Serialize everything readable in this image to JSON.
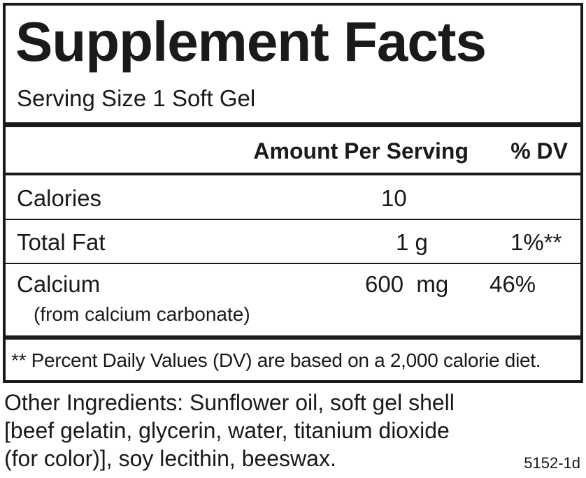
{
  "title": "Supplement Facts",
  "serving_size": "Serving Size 1 Soft Gel",
  "header": {
    "amount": "Amount Per Serving",
    "dv": "% DV"
  },
  "rows": [
    {
      "name": "Calories",
      "amount": "10"
    },
    {
      "name": "Total Fat",
      "amount": "1 g",
      "dv": "1%**"
    },
    {
      "name": "Calcium",
      "amount": "600  mg",
      "dv": "46%",
      "note": "(from calcium carbonate)"
    }
  ],
  "footnote": "** Percent Daily Values (DV) are based on a 2,000 calorie diet.",
  "ingredients": [
    "Other Ingredients: Sunflower oil, soft gel shell",
    "[beef gelatin, glycerin, water, titanium dioxide",
    "(for color)], soy lecithin, beeswax."
  ],
  "code": "5152-1d"
}
